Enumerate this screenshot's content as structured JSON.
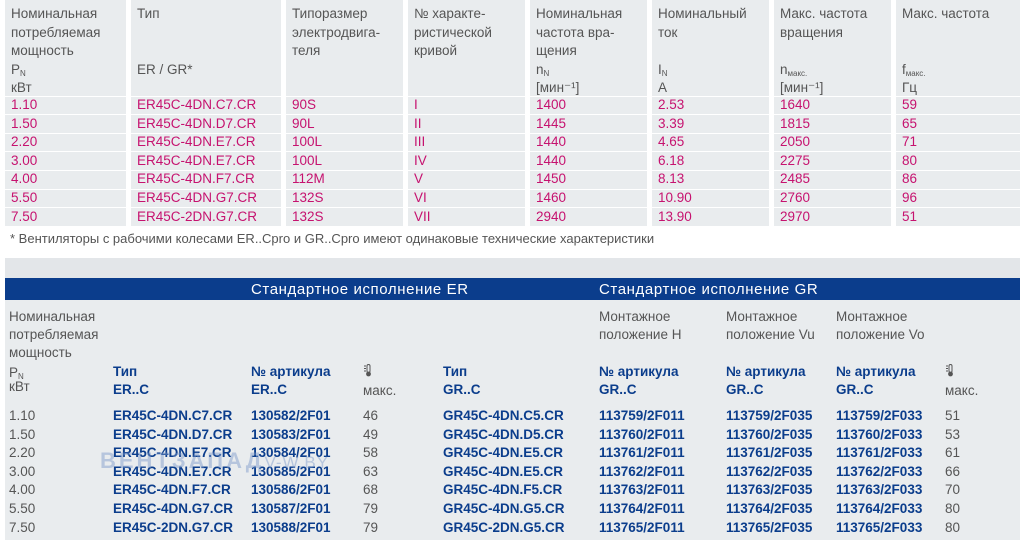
{
  "table1": {
    "headers": [
      {
        "lines": [
          "Номинальная",
          "потребляемая",
          "мощность"
        ],
        "symbol": "P",
        "symbol_sub": "N",
        "unit": "кВт"
      },
      {
        "lines": [
          "Тип"
        ],
        "symbol": "ER / GR*",
        "symbol_sub": "",
        "unit": ""
      },
      {
        "lines": [
          "Типоразмер",
          "электродвига-",
          "теля"
        ],
        "symbol": "",
        "symbol_sub": "",
        "unit": ""
      },
      {
        "lines": [
          "№ характе-",
          "ристической",
          "кривой"
        ],
        "symbol": "",
        "symbol_sub": "",
        "unit": ""
      },
      {
        "lines": [
          "Номинальная",
          "частота вра-",
          "щения"
        ],
        "symbol": "n",
        "symbol_sub": "N",
        "unit": "[мин⁻¹]"
      },
      {
        "lines": [
          "Номинальный",
          "ток"
        ],
        "symbol": "I",
        "symbol_sub": "N",
        "unit": "A"
      },
      {
        "lines": [
          "Макс. частота",
          "вращения"
        ],
        "symbol": "n",
        "symbol_sub": "макс.",
        "unit": "[мин⁻¹]"
      },
      {
        "lines": [
          "Макс. частота"
        ],
        "symbol": "f",
        "symbol_sub": "макс.",
        "unit": "Гц"
      }
    ],
    "rows": [
      [
        "1.10",
        "ER45C-4DN.C7.CR",
        "90S",
        "I",
        "1400",
        "2.53",
        "1640",
        "59"
      ],
      [
        "1.50",
        "ER45C-4DN.D7.CR",
        "90L",
        "II",
        "1445",
        "3.39",
        "1815",
        "65"
      ],
      [
        "2.20",
        "ER45C-4DN.E7.CR",
        "100L",
        "III",
        "1440",
        "4.65",
        "2050",
        "71"
      ],
      [
        "3.00",
        "ER45C-4DN.E7.CR",
        "100L",
        "IV",
        "1440",
        "6.18",
        "2275",
        "80"
      ],
      [
        "4.00",
        "ER45C-4DN.F7.CR",
        "112M",
        "V",
        "1450",
        "8.13",
        "2485",
        "86"
      ],
      [
        "5.50",
        "ER45C-4DN.G7.CR",
        "132S",
        "VI",
        "1460",
        "10.90",
        "2760",
        "96"
      ],
      [
        "7.50",
        "ER45C-2DN.G7.CR",
        "132S",
        "VII",
        "2940",
        "13.90",
        "2970",
        "51"
      ]
    ],
    "footnote": "* Вентиляторы с рабочими колесами ER..Cpro и GR..Cpro имеют одинаковые технические характеристики"
  },
  "table2": {
    "band_er": "Стандартное исполнение ER",
    "band_gr": "Стандартное исполнение GR",
    "power_header": {
      "lines": [
        "Номинальная",
        "потребляемая",
        "мощность"
      ],
      "symbol": "P",
      "symbol_sub": "N",
      "unit": "кВт"
    },
    "mount_headers": [
      {
        "lines": [
          "Монтажное",
          "положение H"
        ]
      },
      {
        "lines": [
          "Монтажное",
          "положение Vu"
        ]
      },
      {
        "lines": [
          "Монтажное",
          "положение Vo"
        ]
      }
    ],
    "col_headers": [
      {
        "title": "Тип",
        "sub": "ER..C"
      },
      {
        "title": "№ артикула",
        "sub": "ER..C"
      },
      {
        "title": "",
        "sub": "макс.",
        "icon": "thermometer-icon"
      },
      {
        "title": "Тип",
        "sub": "GR..C"
      },
      {
        "title": "№ артикула",
        "sub": "GR..C"
      },
      {
        "title": "№ артикула",
        "sub": "GR..C"
      },
      {
        "title": "№ артикула",
        "sub": "GR..C"
      },
      {
        "title": "",
        "sub": "макс.",
        "icon": "thermometer-icon"
      }
    ],
    "rows": [
      [
        "1.10",
        "ER45C-4DN.C7.CR",
        "130582/2F01",
        "46",
        "GR45C-4DN.C5.CR",
        "113759/2F011",
        "113759/2F035",
        "113759/2F033",
        "51"
      ],
      [
        "1.50",
        "ER45C-4DN.D7.CR",
        "130583/2F01",
        "49",
        "GR45C-4DN.D5.CR",
        "113760/2F011",
        "113760/2F035",
        "113760/2F033",
        "53"
      ],
      [
        "2.20",
        "ER45C-4DN.E7.CR",
        "130584/2F01",
        "58",
        "GR45C-4DN.E5.CR",
        "113761/2F011",
        "113761/2F035",
        "113761/2F033",
        "61"
      ],
      [
        "3.00",
        "ER45C-4DN.E7.CR",
        "130585/2F01",
        "63",
        "GR45C-4DN.E5.CR",
        "113762/2F011",
        "113762/2F035",
        "113762/2F033",
        "66"
      ],
      [
        "4.00",
        "ER45C-4DN.F7.CR",
        "130586/2F01",
        "68",
        "GR45C-4DN.F5.CR",
        "113763/2F011",
        "113763/2F035",
        "113763/2F033",
        "70"
      ],
      [
        "5.50",
        "ER45C-4DN.G7.CR",
        "130587/2F01",
        "79",
        "GR45C-4DN.G5.CR",
        "113764/2F011",
        "113764/2F035",
        "113764/2F033",
        "80"
      ],
      [
        "7.50",
        "ER45C-2DN.G7.CR",
        "130588/2F01",
        "79",
        "GR45C-2DN.G5.CR",
        "113765/2F011",
        "113765/2F035",
        "113765/2F033",
        "80"
      ]
    ]
  },
  "watermark": {
    "text": "ВЕНТЗАПАД",
    "domain": "V-W.BY"
  },
  "colors": {
    "accent_magenta": "#c6126f",
    "band_blue": "#0b3d8c",
    "table_bg": "#e9ecee",
    "text_grey": "#555555"
  }
}
